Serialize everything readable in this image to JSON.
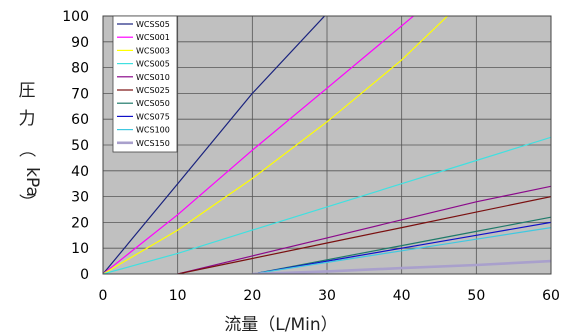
{
  "chart_data": {
    "type": "line",
    "xlabel": "流量（L/Min）",
    "ylabel_chars": [
      "圧",
      "力",
      "（",
      "kPa",
      "）"
    ],
    "xlim": [
      0,
      60
    ],
    "ylim": [
      0,
      100
    ],
    "xticks": [
      0,
      10,
      20,
      30,
      40,
      50,
      60
    ],
    "yticks": [
      0,
      10,
      20,
      30,
      40,
      50,
      60,
      70,
      80,
      90,
      100
    ],
    "grid": true,
    "background": "#c0c0c0",
    "legend_position": "top-left",
    "series": [
      {
        "name": "WCSS05",
        "color": "#1a237e",
        "width": 1.2,
        "x": [
          0,
          10,
          20,
          30
        ],
        "y": [
          0,
          35,
          70,
          101
        ]
      },
      {
        "name": "WCS001",
        "color": "#ff00ff",
        "width": 1.2,
        "x": [
          0,
          10,
          20,
          30,
          42
        ],
        "y": [
          0,
          23,
          48,
          72,
          101
        ]
      },
      {
        "name": "WCS003",
        "color": "#ffff00",
        "width": 1.2,
        "x": [
          0,
          10,
          20,
          30,
          40,
          46.5
        ],
        "y": [
          0,
          17,
          37,
          59,
          83,
          101
        ]
      },
      {
        "name": "WCS005",
        "color": "#40e0e0",
        "width": 1.2,
        "x": [
          0,
          10,
          20,
          30,
          40,
          50,
          60
        ],
        "y": [
          0,
          8,
          17,
          26,
          35,
          44,
          53
        ]
      },
      {
        "name": "WCS010",
        "color": "#8b0a8b",
        "width": 1.2,
        "x": [
          10,
          20,
          30,
          40,
          50,
          60
        ],
        "y": [
          0,
          7,
          14,
          21,
          28,
          34
        ]
      },
      {
        "name": "WCS025",
        "color": "#7a1010",
        "width": 1.2,
        "x": [
          10,
          20,
          30,
          40,
          50,
          60
        ],
        "y": [
          0,
          6,
          12,
          18,
          24,
          30
        ]
      },
      {
        "name": "WCS050",
        "color": "#1f7a6a",
        "width": 1.2,
        "x": [
          20,
          30,
          40,
          50,
          60
        ],
        "y": [
          0,
          5.5,
          11,
          16.5,
          22
        ]
      },
      {
        "name": "WCS075",
        "color": "#1010c8",
        "width": 1.2,
        "x": [
          20,
          30,
          40,
          50,
          60
        ],
        "y": [
          0,
          5,
          10,
          15,
          20
        ]
      },
      {
        "name": "WCS100",
        "color": "#40c8e0",
        "width": 1.2,
        "x": [
          20,
          30,
          40,
          50,
          60
        ],
        "y": [
          0,
          4.5,
          9,
          13.5,
          18
        ]
      },
      {
        "name": "WCS150",
        "color": "#a9a0cc",
        "width": 2.6,
        "x": [
          20,
          30,
          40,
          50,
          60
        ],
        "y": [
          0,
          1,
          2.3,
          3.5,
          5
        ]
      }
    ]
  }
}
